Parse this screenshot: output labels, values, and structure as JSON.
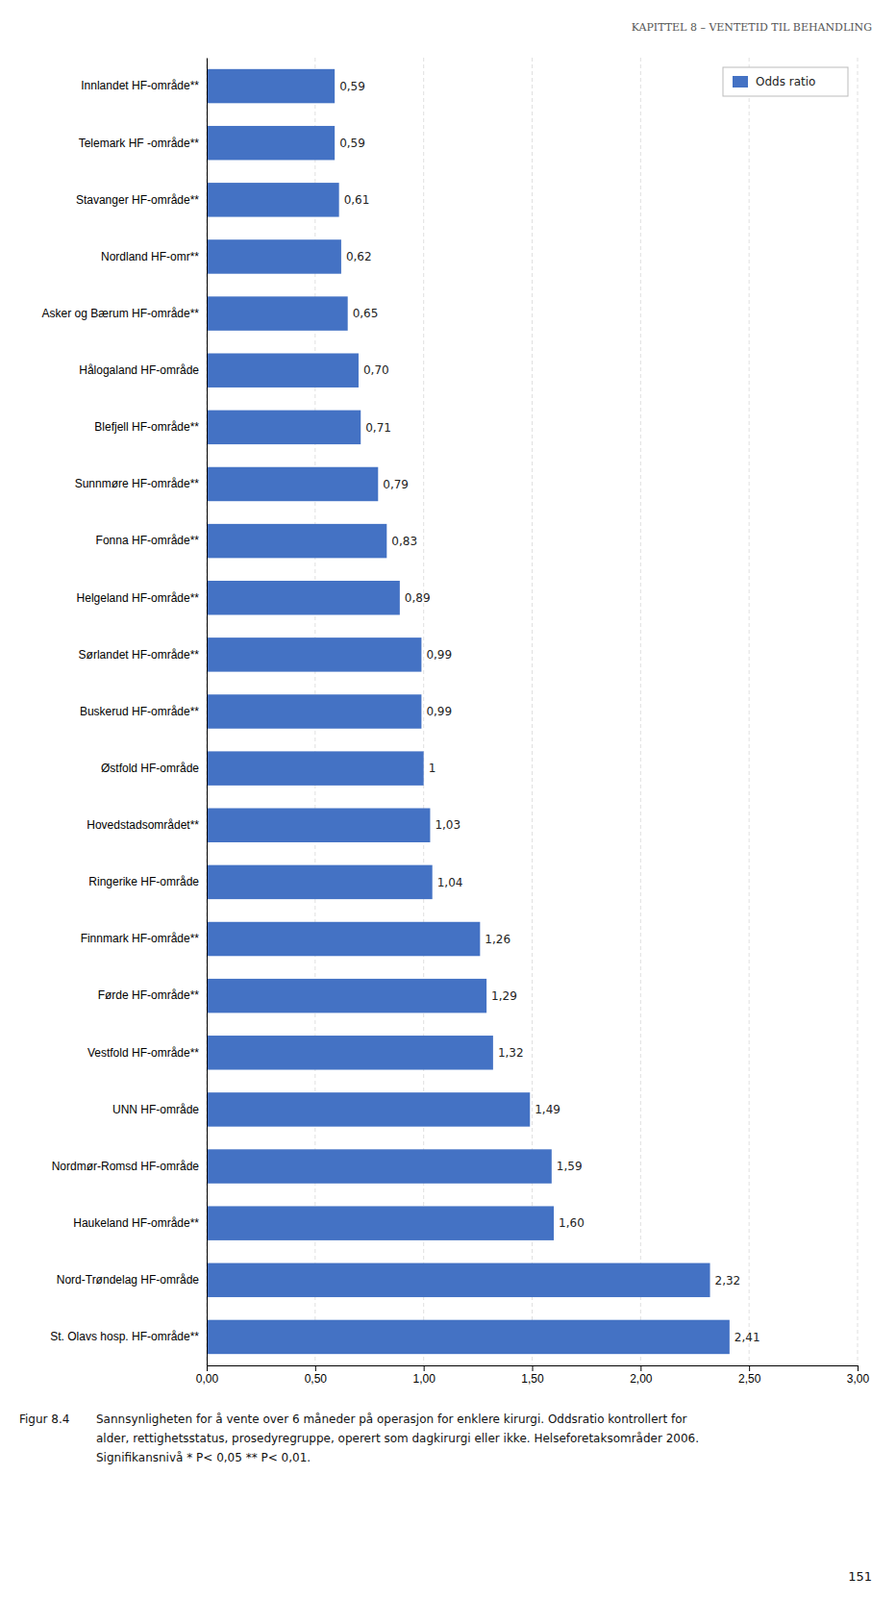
{
  "chart_data": {
    "type": "bar",
    "orientation": "horizontal",
    "categories": [
      "Innlandet HF-område**",
      "Telemark HF -område**",
      "Stavanger HF-område**",
      "Nordland HF-omr**",
      "Asker og Bærum HF-område**",
      "Hålogaland HF-område",
      "Blefjell HF-område**",
      "Sunnmøre HF-område**",
      "Fonna HF-område**",
      "Helgeland HF-område**",
      "Sørlandet HF-område**",
      "Buskerud HF-område**",
      "Østfold HF-område",
      "Hovedstadsområdet**",
      "Ringerike HF-område",
      "Finnmark HF-område**",
      "Førde HF-område**",
      "Vestfold HF-område**",
      "UNN HF-område",
      "Nordmør-Romsd HF-område",
      "Haukeland HF-område**",
      "Nord-Trøndelag HF-område",
      "St. Olavs hosp. HF-område**"
    ],
    "series": [
      {
        "name": "Odds ratio",
        "color": "#4472C4",
        "values": [
          0.59,
          0.59,
          0.61,
          0.62,
          0.65,
          0.7,
          0.71,
          0.79,
          0.83,
          0.89,
          0.99,
          0.99,
          1.0,
          1.03,
          1.04,
          1.26,
          1.29,
          1.32,
          1.49,
          1.59,
          1.6,
          2.32,
          2.41
        ],
        "value_labels": [
          "0,59",
          "0,59",
          "0,61",
          "0,62",
          "0,65",
          "0,70",
          "0,71",
          "0,79",
          "0,83",
          "0,89",
          "0,99",
          "0,99",
          "1",
          "1,03",
          "1,04",
          "1,26",
          "1,29",
          "1,32",
          "1,49",
          "1,59",
          "1,60",
          "2,32",
          "2,41"
        ]
      }
    ],
    "xlim": [
      0,
      3.0
    ],
    "xticks": [
      {
        "value": 0.0,
        "label": "0,00"
      },
      {
        "value": 0.5,
        "label": "0,50"
      },
      {
        "value": 1.0,
        "label": "1,00"
      },
      {
        "value": 1.5,
        "label": "1,50"
      },
      {
        "value": 2.0,
        "label": "2,00"
      },
      {
        "value": 2.5,
        "label": "2,50"
      },
      {
        "value": 3.0,
        "label": "3,00"
      }
    ],
    "grid": true,
    "legend": "upper right",
    "data_labels": true,
    "annotations": [
      "KAPITTEL 8 – VENTETID TIL BEHANDLING",
      "Figur 8.4",
      "Sannsynligheten for å vente over 6 måneder på operasjon for enklere kirurgi. Oddsratio kontrollert for",
      "alder, rettighetsstatus, prosedyregruppe, operert som dagkirurgi eller ikke. Helseforetaksområder 2006.",
      "Signifikansnivå * P< 0,05  ** P< 0,01.",
      "151"
    ]
  }
}
